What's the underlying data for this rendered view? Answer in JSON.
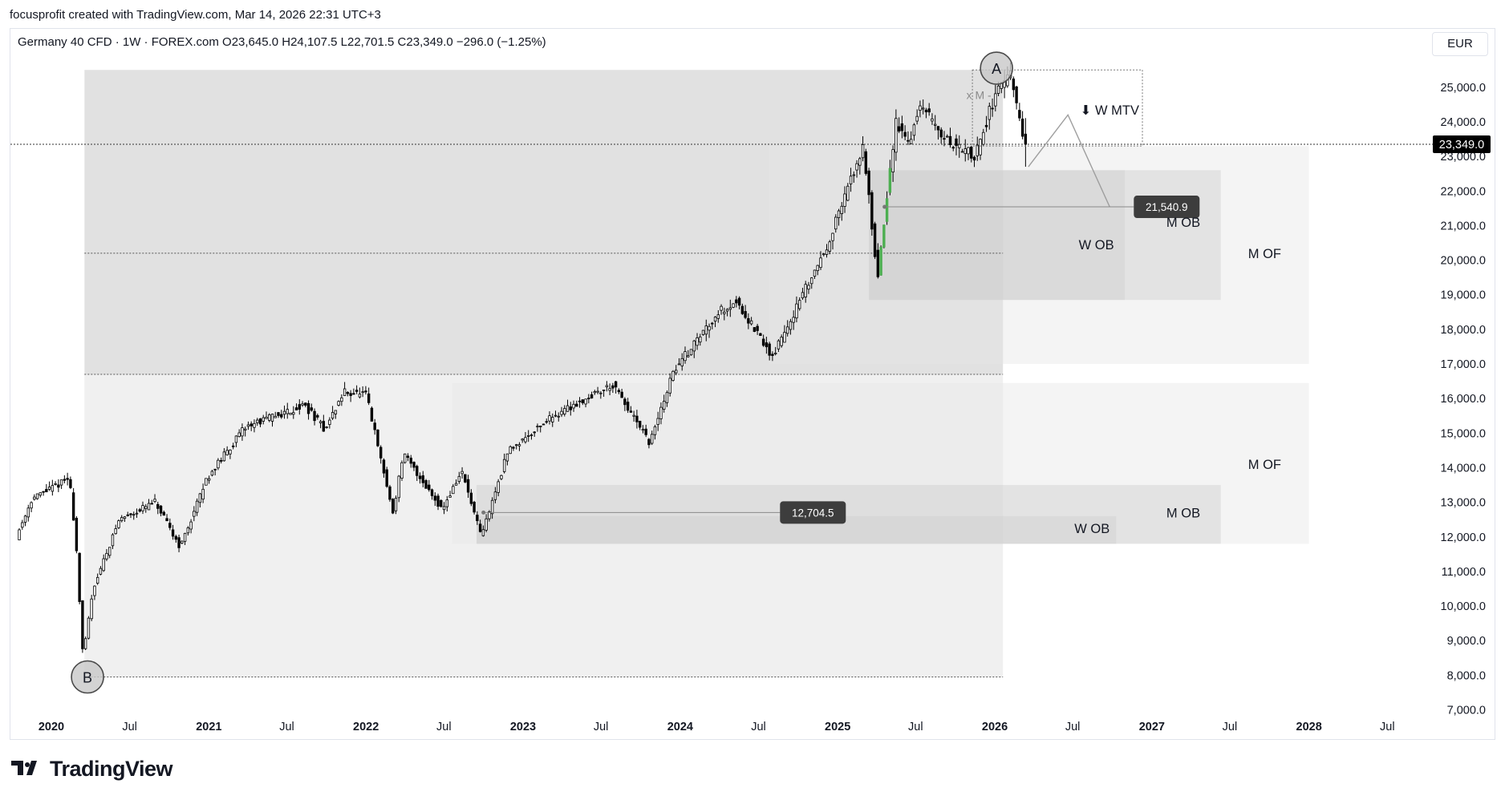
{
  "header": {
    "credit": "focusprofit created with TradingView.com, Mar 14, 2026 22:31 UTC+3"
  },
  "symbol": {
    "legend": "Germany 40 CFD · 1W · FOREX.com  O23,645.0  H24,107.5  L22,701.5  C23,349.0  −296.0 (−1.25%)",
    "currency": "EUR"
  },
  "brand": {
    "name": "TradingView",
    "icon": "tradingview-logo-icon"
  },
  "colors": {
    "up_candle": "#ffffff",
    "down_candle": "#000000",
    "wick": "#000000",
    "highlight_candle": "#4caf50",
    "zone_light": "#f2f2f2",
    "zone_mid": "#e5e5e5",
    "zone_dark": "#d6d6d6",
    "label_bg": "#3d3d3d",
    "price_label_bg": "#000000"
  },
  "chart_data": {
    "type": "candlestick",
    "symbol": "Germany 40 CFD",
    "interval": "1W",
    "currency": "EUR",
    "y_axis": {
      "range": [
        7000,
        26000
      ],
      "ticks": [
        "7,000.0",
        "8,000.0",
        "9,000.0",
        "10,000.0",
        "11,000.0",
        "12,000.0",
        "13,000.0",
        "14,000.0",
        "15,000.0",
        "16,000.0",
        "17,000.0",
        "18,000.0",
        "19,000.0",
        "20,000.0",
        "21,000.0",
        "22,000.0",
        "23,000.0",
        "24,000.0",
        "25,000.0"
      ]
    },
    "x_axis": {
      "range": [
        "2019-10-15",
        "2029-01-01"
      ],
      "ticks": [
        {
          "date": "2020-01-01",
          "label": "2020",
          "bold": true
        },
        {
          "date": "2020-07-01",
          "label": "Jul",
          "bold": false
        },
        {
          "date": "2021-01-01",
          "label": "2021",
          "bold": true
        },
        {
          "date": "2021-07-01",
          "label": "Jul",
          "bold": false
        },
        {
          "date": "2022-01-01",
          "label": "2022",
          "bold": true
        },
        {
          "date": "2022-07-01",
          "label": "Jul",
          "bold": false
        },
        {
          "date": "2023-01-01",
          "label": "2023",
          "bold": true
        },
        {
          "date": "2023-07-01",
          "label": "Jul",
          "bold": false
        },
        {
          "date": "2024-01-01",
          "label": "2024",
          "bold": true
        },
        {
          "date": "2024-07-01",
          "label": "Jul",
          "bold": false
        },
        {
          "date": "2025-01-01",
          "label": "2025",
          "bold": true
        },
        {
          "date": "2025-07-01",
          "label": "Jul",
          "bold": false
        },
        {
          "date": "2026-01-01",
          "label": "2026",
          "bold": true
        },
        {
          "date": "2026-07-01",
          "label": "Jul",
          "bold": false
        },
        {
          "date": "2027-01-01",
          "label": "2027",
          "bold": true
        },
        {
          "date": "2027-07-01",
          "label": "Jul",
          "bold": false
        },
        {
          "date": "2028-01-01",
          "label": "2028",
          "bold": true
        },
        {
          "date": "2028-07-01",
          "label": "Jul",
          "bold": false
        }
      ]
    },
    "last_price": {
      "value": 23349.0,
      "label": "23,349.0"
    },
    "path_anchors": [
      [
        "2019-10-15",
        12000
      ],
      [
        "2019-11-20",
        13100
      ],
      [
        "2020-02-15",
        13700
      ],
      [
        "2020-03-01",
        12000
      ],
      [
        "2020-03-18",
        8500
      ],
      [
        "2020-04-10",
        10500
      ],
      [
        "2020-06-10",
        12500
      ],
      [
        "2020-09-01",
        13000
      ],
      [
        "2020-10-30",
        11700
      ],
      [
        "2020-12-31",
        13700
      ],
      [
        "2021-04-01",
        15200
      ],
      [
        "2021-08-15",
        15800
      ],
      [
        "2021-10-01",
        15100
      ],
      [
        "2021-11-15",
        16200
      ],
      [
        "2022-01-05",
        16100
      ],
      [
        "2022-03-08",
        12700
      ],
      [
        "2022-04-01",
        14400
      ],
      [
        "2022-07-01",
        12800
      ],
      [
        "2022-08-15",
        13900
      ],
      [
        "2022-09-29",
        12000
      ],
      [
        "2022-12-01",
        14500
      ],
      [
        "2023-03-15",
        15500
      ],
      [
        "2023-07-31",
        16400
      ],
      [
        "2023-10-26",
        14700
      ],
      [
        "2023-12-20",
        16800
      ],
      [
        "2024-04-01",
        18500
      ],
      [
        "2024-05-15",
        18800
      ],
      [
        "2024-08-05",
        17200
      ],
      [
        "2024-12-10",
        20400
      ],
      [
        "2025-03-05",
        23300
      ],
      [
        "2025-04-07",
        19500
      ],
      [
        "2025-05-20",
        24000
      ],
      [
        "2025-06-20",
        23400
      ],
      [
        "2025-07-15",
        24500
      ],
      [
        "2025-09-10",
        23500
      ],
      [
        "2025-11-20",
        23000
      ],
      [
        "2026-01-10",
        25000
      ],
      [
        "2026-02-10",
        25300
      ],
      [
        "2026-03-14",
        23349
      ]
    ],
    "zones": [
      {
        "from": "2020-03-18",
        "to": "2026-01-20",
        "top": 25500,
        "bottom": 16700,
        "shade": "dark_gray"
      },
      {
        "from": "2020-03-18",
        "to": "2026-01-20",
        "top": 16700,
        "bottom": 7950,
        "shade": "light_gray"
      },
      {
        "from": "2024-07-25",
        "to": "2028-01-01",
        "top": 23300,
        "bottom": 17000,
        "shade": "light"
      },
      {
        "from": "2025-03-15",
        "to": "2027-06-10",
        "top": 22600,
        "bottom": 18850,
        "shade": "medium"
      },
      {
        "from": "2025-03-15",
        "to": "2026-10-30",
        "top": 22600,
        "bottom": 18850,
        "shade": "medium"
      },
      {
        "from": "2022-07-20",
        "to": "2028-01-01",
        "top": 16450,
        "bottom": 11800,
        "shade": "light"
      },
      {
        "from": "2022-09-15",
        "to": "2027-06-10",
        "top": 13500,
        "bottom": 11800,
        "shade": "medium"
      },
      {
        "from": "2022-09-15",
        "to": "2026-10-10",
        "top": 12600,
        "bottom": 11800,
        "shade": "medium"
      }
    ],
    "dotted_levels": [
      {
        "value": 20200,
        "from": "2020-03-18",
        "to": "2026-01-20"
      },
      {
        "value": 16700,
        "from": "2020-03-18",
        "to": "2026-01-20"
      },
      {
        "value": 7950,
        "from": "2020-03-18",
        "to": "2026-01-20"
      }
    ],
    "range_box": {
      "from": "2025-11-10",
      "to": "2026-12-10",
      "top": 25500,
      "bottom": 23300
    },
    "mtv_path": [
      [
        "2026-03-20",
        22700
      ],
      [
        "2026-06-20",
        24200
      ],
      [
        "2026-09-25",
        21540.9
      ]
    ],
    "levels": [
      {
        "value": 21540.9,
        "label": "21,540.9",
        "from": "2025-04-20",
        "to": "2026-10-10",
        "label_at": "2026-11-20"
      },
      {
        "value": 12704.5,
        "label": "12,704.5",
        "from": "2022-10-01",
        "to": "2024-08-01",
        "label_at": "2024-08-20"
      }
    ],
    "annotations": [
      {
        "text": "⬇ W MTV",
        "x": "2026-09-25",
        "y": 24350
      },
      {
        "text": "x M -",
        "x": "2025-11-25",
        "y": 24800,
        "muted": true
      },
      {
        "text": "M OB",
        "x": "2027-03-15",
        "y": 21100
      },
      {
        "text": "W OB",
        "x": "2026-08-25",
        "y": 20450
      },
      {
        "text": "M OF",
        "x": "2027-09-20",
        "y": 20200
      },
      {
        "text": "M OF",
        "x": "2027-09-20",
        "y": 14100
      },
      {
        "text": "M OB",
        "x": "2027-03-15",
        "y": 12700
      },
      {
        "text": "W OB",
        "x": "2026-08-15",
        "y": 12250
      }
    ],
    "markers": [
      {
        "label": "A",
        "x": "2026-01-05",
        "y": 25550
      },
      {
        "label": "B",
        "x": "2020-03-25",
        "y": 7950
      }
    ]
  }
}
